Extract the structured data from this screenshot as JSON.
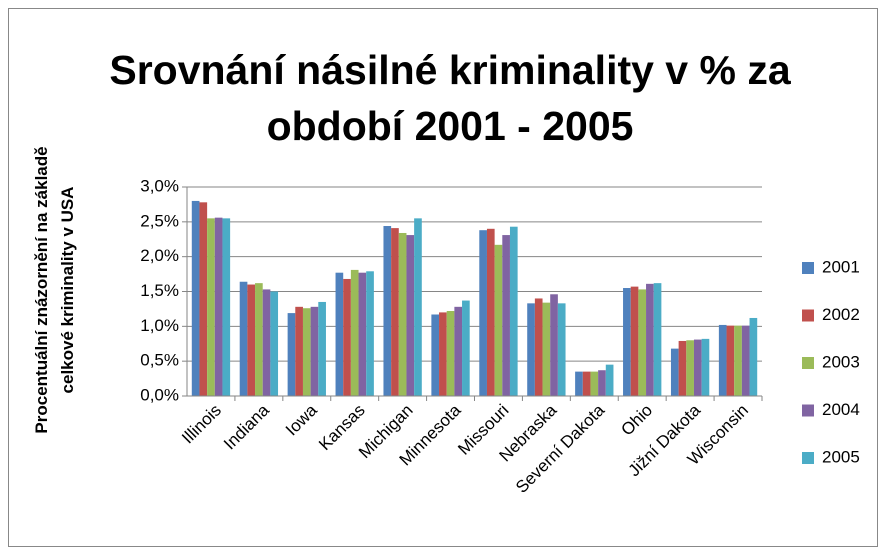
{
  "chart_data": {
    "type": "bar",
    "title": "Srovnání násilné kriminality v % za období 2001 - 2005",
    "y_label": "Procentuální znázornění na základě celkové kriminality v USA",
    "categories": [
      "Illinois",
      "Indiana",
      "Iowa",
      "Kansas",
      "Michigan",
      "Minnesota",
      "Missouri",
      "Nebraska",
      "Severní Dakota",
      "Ohio",
      "Jižní Dakota",
      "Wisconsin"
    ],
    "series": [
      {
        "name": "2001",
        "color": "#4f81bd",
        "values": [
          2.8,
          1.64,
          1.19,
          1.77,
          2.44,
          1.17,
          2.38,
          1.33,
          0.35,
          1.55,
          0.68,
          1.02
        ]
      },
      {
        "name": "2002",
        "color": "#c0504d",
        "values": [
          2.78,
          1.6,
          1.28,
          1.68,
          2.41,
          1.2,
          2.4,
          1.4,
          0.35,
          1.57,
          0.79,
          1.01
        ]
      },
      {
        "name": "2003",
        "color": "#9bbb59",
        "values": [
          2.55,
          1.62,
          1.26,
          1.81,
          2.34,
          1.22,
          2.17,
          1.34,
          0.35,
          1.53,
          0.8,
          1.01
        ]
      },
      {
        "name": "2004",
        "color": "#8064a2",
        "values": [
          2.56,
          1.53,
          1.28,
          1.77,
          2.31,
          1.28,
          2.31,
          1.46,
          0.37,
          1.61,
          0.81,
          1.01
        ]
      },
      {
        "name": "2005",
        "color": "#4bacc6",
        "values": [
          2.55,
          1.5,
          1.35,
          1.79,
          2.55,
          1.37,
          2.43,
          1.33,
          0.45,
          1.62,
          0.82,
          1.12
        ]
      }
    ],
    "ylim": [
      0,
      3
    ],
    "yticks": [
      {
        "value": 0,
        "label": "0,0%"
      },
      {
        "value": 0.5,
        "label": "0,5%"
      },
      {
        "value": 1,
        "label": "1,0%"
      },
      {
        "value": 1.5,
        "label": "1,5%"
      },
      {
        "value": 2,
        "label": "2,0%"
      },
      {
        "value": 2.5,
        "label": "2,5%"
      },
      {
        "value": 3,
        "label": "3,0%"
      }
    ],
    "grid": true,
    "legend": "right"
  }
}
